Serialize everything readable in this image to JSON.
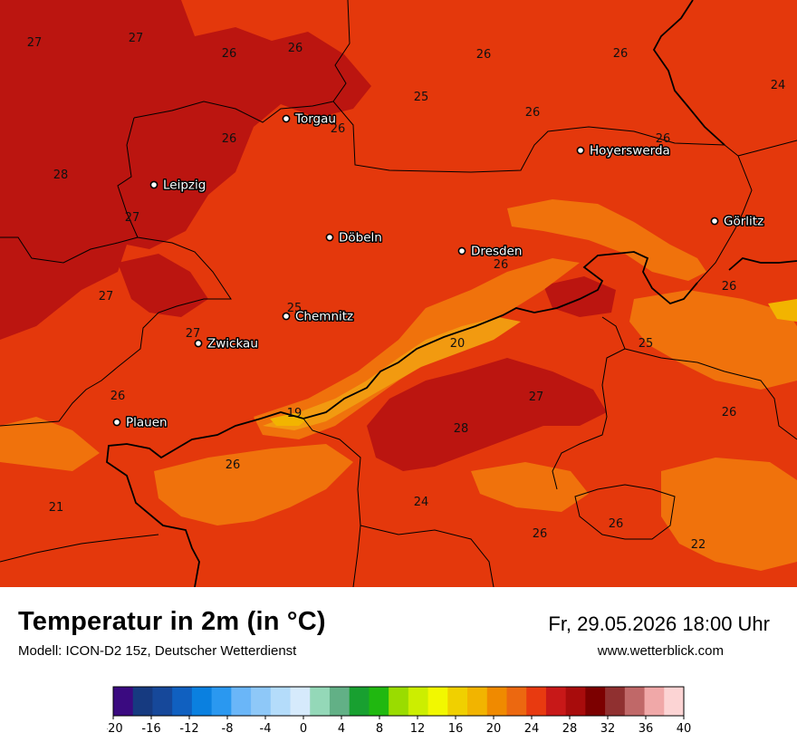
{
  "title": "Temperatur in 2m (in °C)",
  "subtitle": "Modell: ICON-D2 15z, Deutscher Wetterdienst",
  "datetime": "Fr, 29.05.2026 18:00 Uhr",
  "website": "www.wetterblick.com",
  "map": {
    "cities": [
      {
        "name": "Torgau"
      },
      {
        "name": "Hoyerswerda"
      },
      {
        "name": "Leipzig"
      },
      {
        "name": "Görlitz"
      },
      {
        "name": "Döbeln"
      },
      {
        "name": "Dresden"
      },
      {
        "name": "Chemnitz"
      },
      {
        "name": "Zwickau"
      },
      {
        "name": "Plauen"
      }
    ],
    "values": [
      "27",
      "27",
      "26",
      "26",
      "26",
      "26",
      "24",
      "25",
      "26",
      "26",
      "26",
      "26",
      "28",
      "27",
      "27",
      "26",
      "27",
      "26",
      "25",
      "25",
      "20",
      "27",
      "26",
      "19",
      "28",
      "26",
      "26",
      "21",
      "24",
      "26",
      "26",
      "22"
    ]
  },
  "legend": {
    "ticks": [
      "-20",
      "-16",
      "-12",
      "-8",
      "-4",
      "0",
      "4",
      "8",
      "12",
      "16",
      "20",
      "24",
      "28",
      "32",
      "36",
      "40"
    ],
    "colors": [
      "#3a0a80",
      "#163a80",
      "#16489a",
      "#1060c0",
      "#0a80e0",
      "#2a98f0",
      "#6ab6f8",
      "#8ec8f8",
      "#b4dcfa",
      "#d6eafc",
      "#94d8b8",
      "#62b086",
      "#18a030",
      "#20b810",
      "#9adc00",
      "#ccee00",
      "#f2f800",
      "#f0d000",
      "#f2b400",
      "#f08a00",
      "#ec6810",
      "#e83a10",
      "#c81818",
      "#a80c0c",
      "#7c0000",
      "#903030",
      "#c06868",
      "#f0a8a8",
      "#fcd4d4"
    ],
    "accent": "#e83a10"
  }
}
